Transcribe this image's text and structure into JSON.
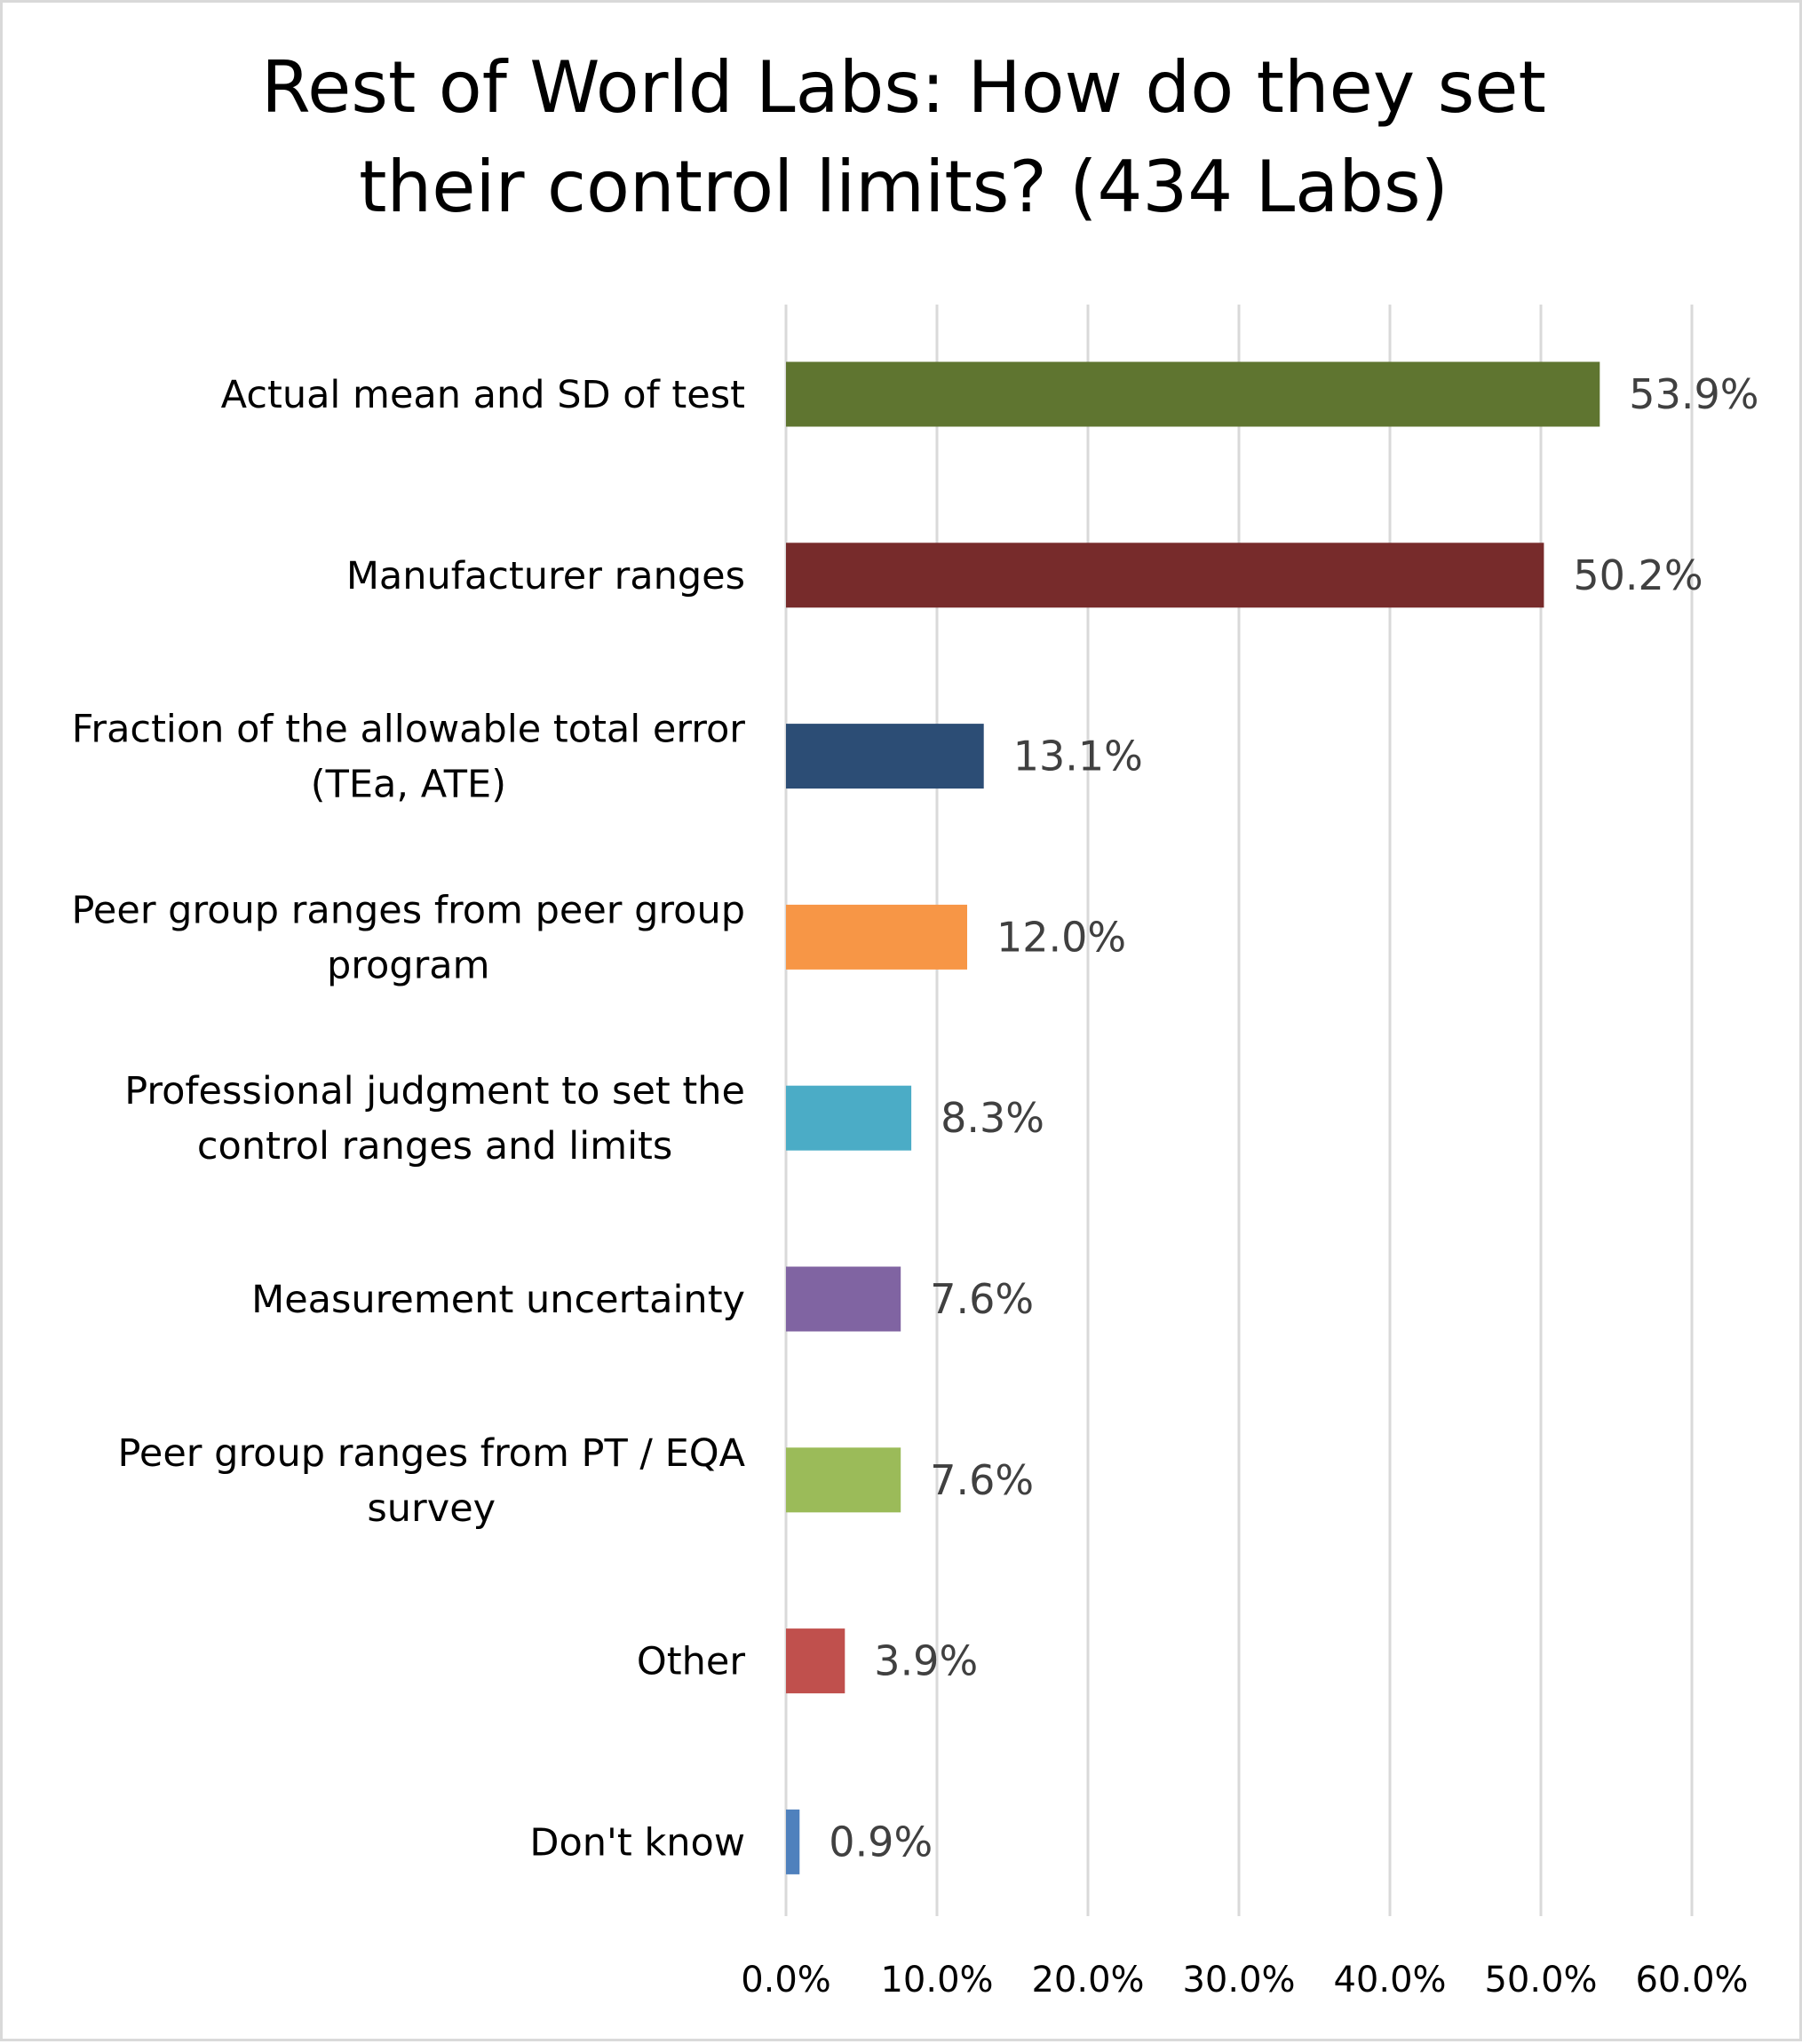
{
  "chart_data": {
    "type": "bar",
    "orientation": "horizontal",
    "title": "Rest of World Labs: How do they set their control limits? (434 Labs)",
    "title_lines": [
      "Rest of World Labs: How do they set",
      "their control limits? (434 Labs)"
    ],
    "categories": [
      [
        "Actual mean and SD of test"
      ],
      [
        "Manufacturer ranges"
      ],
      [
        "Fraction of the allowable total error",
        "(TEa, ATE)"
      ],
      [
        "Peer group ranges from peer group",
        "program"
      ],
      [
        "Professional judgment to set the",
        "control ranges and limits"
      ],
      [
        "Measurement uncertainty"
      ],
      [
        "Peer group ranges from PT / EQA",
        "survey"
      ],
      [
        "Other"
      ],
      [
        "Don't know"
      ]
    ],
    "values": [
      53.9,
      50.2,
      13.1,
      12.0,
      8.3,
      7.6,
      7.6,
      3.9,
      0.9
    ],
    "data_labels": [
      "53.9%",
      "50.2%",
      "13.1%",
      "12.0%",
      "8.3%",
      "7.6%",
      "7.6%",
      "3.9%",
      "0.9%"
    ],
    "colors": [
      "#5f7530",
      "#772b2b",
      "#2c4d75",
      "#f79646",
      "#4bacc6",
      "#8064a2",
      "#9bbb59",
      "#c0504d",
      "#4f81bd"
    ],
    "xlim": [
      0,
      60
    ],
    "xticks": [
      0,
      10,
      20,
      30,
      40,
      50,
      60
    ],
    "xtick_labels": [
      "0.0%",
      "10.0%",
      "20.0%",
      "30.0%",
      "40.0%",
      "50.0%",
      "60.0%"
    ],
    "xlabel": "",
    "ylabel": "",
    "grid": "vertical",
    "legend": "none"
  }
}
